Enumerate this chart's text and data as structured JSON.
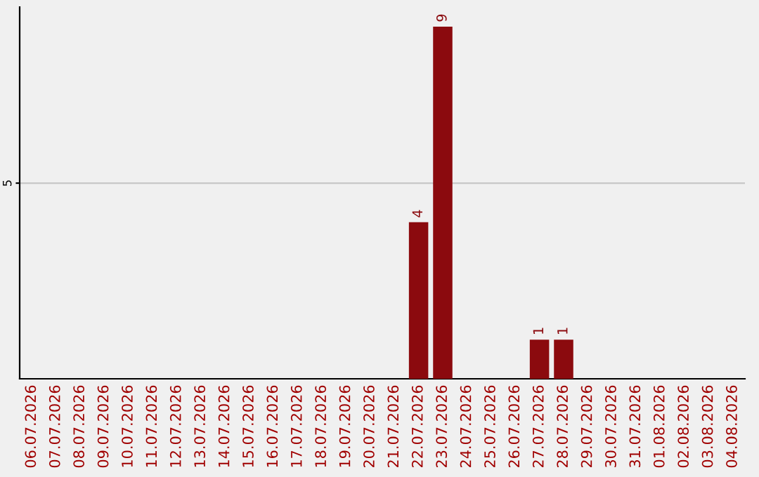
{
  "chart_data": {
    "type": "bar",
    "categories": [
      "06.07.2026",
      "07.07.2026",
      "08.07.2026",
      "09.07.2026",
      "10.07.2026",
      "11.07.2026",
      "12.07.2026",
      "13.07.2026",
      "14.07.2026",
      "15.07.2026",
      "16.07.2026",
      "17.07.2026",
      "18.07.2026",
      "19.07.2026",
      "20.07.2026",
      "21.07.2026",
      "22.07.2026",
      "23.07.2026",
      "24.07.2026",
      "25.07.2026",
      "26.07.2026",
      "27.07.2026",
      "28.07.2026",
      "29.07.2026",
      "30.07.2026",
      "31.07.2026",
      "01.08.2026",
      "02.08.2026",
      "03.08.2026",
      "04.08.2026"
    ],
    "values": [
      null,
      null,
      null,
      null,
      null,
      null,
      null,
      null,
      null,
      null,
      null,
      null,
      null,
      null,
      null,
      null,
      4,
      9,
      null,
      null,
      null,
      1,
      1,
      null,
      null,
      null,
      null,
      null,
      null,
      null
    ],
    "color": "#8b0a0e",
    "ylim": [
      0,
      9.5
    ],
    "yticks": [
      5
    ],
    "grid": "y",
    "data_labels": true
  }
}
